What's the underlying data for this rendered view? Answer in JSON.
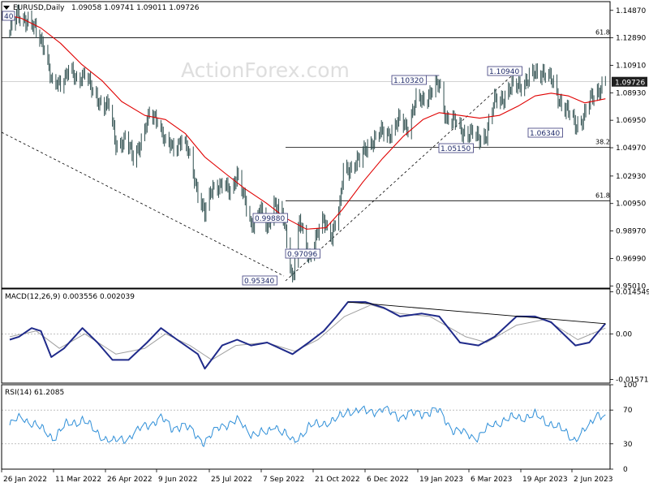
{
  "header": {
    "symbol": "EURUSD,Daily",
    "ohlc": "1.09058 1.09741 1.09011 1.09726"
  },
  "watermark": "ActionForex.com",
  "colors": {
    "candles": "#2f4f4f",
    "ma": "#e00000",
    "macd": "#1f2a8a",
    "signal": "#a0a0a0",
    "rsi": "#2f8fd8",
    "grid": "#9a9a9a",
    "price_label_bg": "#1f1f1f"
  },
  "chart_data": [
    {
      "type": "candlestick",
      "panel": "price",
      "ylim": [
        0.9485,
        1.155
      ],
      "y_ticks": [
        "1.14870",
        "1.12890",
        "1.10910",
        "1.08930",
        "1.06950",
        "1.04970",
        "1.02930",
        "1.00950",
        "0.98970",
        "0.96990",
        "0.95010"
      ],
      "x_labels": [
        "26 Jan 2022",
        "11 Mar 2022",
        "26 Apr 2022",
        "9 Jun 2022",
        "25 Jul 2022",
        "7 Sep 2022",
        "21 Oct 2022",
        "6 Dec 2022",
        "19 Jan 2023",
        "6 Mar 2023",
        "19 Apr 2023",
        "2 Jun 2023"
      ],
      "close_path": [
        [
          "2022-01-26",
          1.133
        ],
        [
          "2022-02-02",
          1.145
        ],
        [
          "2022-02-10",
          1.142
        ],
        [
          "2022-02-18",
          1.133
        ],
        [
          "2022-02-25",
          1.124
        ],
        [
          "2022-03-04",
          1.093
        ],
        [
          "2022-03-11",
          1.098
        ],
        [
          "2022-03-18",
          1.105
        ],
        [
          "2022-03-25",
          1.098
        ],
        [
          "2022-04-01",
          1.105
        ],
        [
          "2022-04-08",
          1.088
        ],
        [
          "2022-04-15",
          1.083
        ],
        [
          "2022-04-22",
          1.079
        ],
        [
          "2022-04-28",
          1.052
        ],
        [
          "2022-05-06",
          1.056
        ],
        [
          "2022-05-13",
          1.042
        ],
        [
          "2022-05-20",
          1.056
        ],
        [
          "2022-05-27",
          1.072
        ],
        [
          "2022-06-03",
          1.072
        ],
        [
          "2022-06-10",
          1.052
        ],
        [
          "2022-06-17",
          1.05
        ],
        [
          "2022-06-24",
          1.056
        ],
        [
          "2022-07-01",
          1.043
        ],
        [
          "2022-07-08",
          1.018
        ],
        [
          "2022-07-14",
          1.001
        ],
        [
          "2022-07-21",
          1.023
        ],
        [
          "2022-07-29",
          1.022
        ],
        [
          "2022-08-05",
          1.018
        ],
        [
          "2022-08-11",
          1.032
        ],
        [
          "2022-08-18",
          1.009
        ],
        [
          "2022-08-23",
          0.994
        ],
        [
          "2022-08-31",
          1.005
        ],
        [
          "2022-09-06",
          0.99
        ],
        [
          "2022-09-12",
          1.012
        ],
        [
          "2022-09-20",
          0.998
        ],
        [
          "2022-09-28",
          0.956
        ],
        [
          "2022-10-04",
          0.996
        ],
        [
          "2022-10-12",
          0.971
        ],
        [
          "2022-10-18",
          0.985
        ],
        [
          "2022-10-25",
          0.996
        ],
        [
          "2022-11-01",
          0.988
        ],
        [
          "2022-11-08",
          1.006
        ],
        [
          "2022-11-11",
          1.034
        ],
        [
          "2022-11-18",
          1.036
        ],
        [
          "2022-11-25",
          1.04
        ],
        [
          "2022-12-02",
          1.053
        ],
        [
          "2022-12-09",
          1.055
        ],
        [
          "2022-12-15",
          1.062
        ],
        [
          "2022-12-23",
          1.06
        ],
        [
          "2022-12-30",
          1.07
        ],
        [
          "2023-01-06",
          1.065
        ],
        [
          "2023-01-13",
          1.083
        ],
        [
          "2023-01-20",
          1.085
        ],
        [
          "2023-01-26",
          1.09
        ],
        [
          "2023-02-02",
          1.095
        ],
        [
          "2023-02-08",
          1.072
        ],
        [
          "2023-02-15",
          1.068
        ],
        [
          "2023-02-22",
          1.062
        ],
        [
          "2023-03-01",
          1.06
        ],
        [
          "2023-03-08",
          1.056
        ],
        [
          "2023-03-15",
          1.06
        ],
        [
          "2023-03-22",
          1.083
        ],
        [
          "2023-03-29",
          1.086
        ],
        [
          "2023-04-05",
          1.092
        ],
        [
          "2023-04-12",
          1.095
        ],
        [
          "2023-04-19",
          1.098
        ],
        [
          "2023-04-26",
          1.103
        ],
        [
          "2023-05-03",
          1.105
        ],
        [
          "2023-05-10",
          1.098
        ],
        [
          "2023-05-17",
          1.085
        ],
        [
          "2023-05-24",
          1.076
        ],
        [
          "2023-05-31",
          1.066
        ],
        [
          "2023-06-07",
          1.072
        ],
        [
          "2023-06-14",
          1.085
        ],
        [
          "2023-06-21",
          1.093
        ],
        [
          "2023-06-26",
          1.0973
        ]
      ],
      "moving_average": [
        [
          "2022-01-26",
          1.145
        ],
        [
          "2022-02-05",
          1.143
        ],
        [
          "2022-02-22",
          1.136
        ],
        [
          "2022-03-11",
          1.125
        ],
        [
          "2022-03-29",
          1.11
        ],
        [
          "2022-04-16",
          1.098
        ],
        [
          "2022-05-03",
          1.083
        ],
        [
          "2022-05-23",
          1.073
        ],
        [
          "2022-06-10",
          1.07
        ],
        [
          "2022-06-27",
          1.06
        ],
        [
          "2022-07-14",
          1.043
        ],
        [
          "2022-08-01",
          1.031
        ],
        [
          "2022-08-18",
          1.02
        ],
        [
          "2022-09-05",
          1.01
        ],
        [
          "2022-09-22",
          0.999
        ],
        [
          "2022-10-10",
          0.991
        ],
        [
          "2022-10-27",
          0.992
        ],
        [
          "2022-11-10",
          1.005
        ],
        [
          "2022-11-28",
          1.025
        ],
        [
          "2022-12-15",
          1.042
        ],
        [
          "2023-01-02",
          1.058
        ],
        [
          "2023-01-19",
          1.07
        ],
        [
          "2023-02-02",
          1.075
        ],
        [
          "2023-02-20",
          1.073
        ],
        [
          "2023-03-09",
          1.071
        ],
        [
          "2023-03-26",
          1.073
        ],
        [
          "2023-04-12",
          1.08
        ],
        [
          "2023-04-26",
          1.087
        ],
        [
          "2023-05-10",
          1.089
        ],
        [
          "2023-05-25",
          1.087
        ],
        [
          "2023-06-08",
          1.082
        ],
        [
          "2023-06-26",
          1.085
        ]
      ],
      "horizontal_levels": [
        {
          "label": "61.8",
          "value": 1.129
        },
        {
          "label": "38.2",
          "value": 1.05
        },
        {
          "label": "61.8",
          "value": 1.0115
        }
      ],
      "current_price": "1.09726",
      "annotations": [
        {
          "text": "1.10320",
          "date": "2023-02-02"
        },
        {
          "text": "1.10940",
          "date": "2023-04-26"
        },
        {
          "text": "1.06340",
          "date": "2023-05-31"
        },
        {
          "text": "1.05150",
          "date": "2023-03-08"
        },
        {
          "text": "0.95340",
          "date": "2022-09-28"
        },
        {
          "text": "0.97096",
          "date": "2022-10-12"
        },
        {
          "text": "0.99880",
          "date": "2022-09-20"
        },
        {
          "text": "40",
          "date": "2022-01-26"
        }
      ]
    },
    {
      "type": "line",
      "panel": "macd",
      "label": "MACD(12,26,9) 0.003556 0.002039",
      "ylim": [
        -0.017,
        0.0155
      ],
      "y_ticks": [
        "0.014549",
        "0.00",
        "-0.015712"
      ],
      "macd": [
        [
          "2022-01-26",
          -0.002
        ],
        [
          "2022-02-03",
          -0.001
        ],
        [
          "2022-02-14",
          0.002
        ],
        [
          "2022-02-22",
          0.001
        ],
        [
          "2022-03-03",
          -0.008
        ],
        [
          "2022-03-14",
          -0.005
        ],
        [
          "2022-03-30",
          0.002
        ],
        [
          "2022-04-12",
          -0.003
        ],
        [
          "2022-04-25",
          -0.009
        ],
        [
          "2022-05-09",
          -0.009
        ],
        [
          "2022-05-25",
          -0.003
        ],
        [
          "2022-06-06",
          0.002
        ],
        [
          "2022-06-20",
          -0.002
        ],
        [
          "2022-07-08",
          -0.007
        ],
        [
          "2022-07-14",
          -0.012
        ],
        [
          "2022-07-29",
          -0.004
        ],
        [
          "2022-08-11",
          -0.002
        ],
        [
          "2022-08-23",
          -0.004
        ],
        [
          "2022-09-06",
          -0.003
        ],
        [
          "2022-09-28",
          -0.007
        ],
        [
          "2022-10-12",
          -0.003
        ],
        [
          "2022-10-25",
          0.001
        ],
        [
          "2022-11-05",
          0.006
        ],
        [
          "2022-11-15",
          0.011
        ],
        [
          "2022-11-30",
          0.011
        ],
        [
          "2022-12-16",
          0.009
        ],
        [
          "2022-12-30",
          0.006
        ],
        [
          "2023-01-18",
          0.007
        ],
        [
          "2023-02-02",
          0.006
        ],
        [
          "2023-02-20",
          -0.003
        ],
        [
          "2023-03-08",
          -0.004
        ],
        [
          "2023-03-22",
          -0.001
        ],
        [
          "2023-04-10",
          0.006
        ],
        [
          "2023-04-26",
          0.006
        ],
        [
          "2023-05-10",
          0.004
        ],
        [
          "2023-05-31",
          -0.004
        ],
        [
          "2023-06-12",
          -0.003
        ],
        [
          "2023-06-26",
          0.0036
        ]
      ],
      "signal": [
        [
          "2022-01-26",
          -0.001
        ],
        [
          "2022-02-18",
          0.001
        ],
        [
          "2022-03-10",
          -0.005
        ],
        [
          "2022-04-01",
          0.0
        ],
        [
          "2022-04-28",
          -0.007
        ],
        [
          "2022-05-23",
          -0.005
        ],
        [
          "2022-06-10",
          0.0
        ],
        [
          "2022-07-01",
          -0.004
        ],
        [
          "2022-07-20",
          -0.009
        ],
        [
          "2022-08-10",
          -0.004
        ],
        [
          "2022-09-05",
          -0.003
        ],
        [
          "2022-09-30",
          -0.006
        ],
        [
          "2022-10-20",
          -0.002
        ],
        [
          "2022-11-12",
          0.006
        ],
        [
          "2022-12-05",
          0.01
        ],
        [
          "2022-12-30",
          0.007
        ],
        [
          "2023-01-25",
          0.006
        ],
        [
          "2023-02-25",
          -0.001
        ],
        [
          "2023-03-15",
          -0.003
        ],
        [
          "2023-04-10",
          0.003
        ],
        [
          "2023-05-05",
          0.005
        ],
        [
          "2023-06-02",
          -0.002
        ],
        [
          "2023-06-26",
          0.002
        ]
      ],
      "trendline": [
        [
          "2022-11-15",
          0.011
        ],
        [
          "2023-06-26",
          0.0035
        ]
      ]
    },
    {
      "type": "line",
      "panel": "rsi",
      "label": "RSI(14) 61.2085",
      "ylim": [
        0,
        100
      ],
      "y_ticks": [
        "100",
        "70",
        "30",
        "0"
      ],
      "levels": [
        70,
        30
      ],
      "rsi": [
        [
          "2022-01-26",
          52
        ],
        [
          "2022-02-05",
          62
        ],
        [
          "2022-02-15",
          55
        ],
        [
          "2022-02-25",
          45
        ],
        [
          "2022-03-05",
          38
        ],
        [
          "2022-03-15",
          52
        ],
        [
          "2022-03-30",
          60
        ],
        [
          "2022-04-10",
          45
        ],
        [
          "2022-04-25",
          32
        ],
        [
          "2022-05-09",
          38
        ],
        [
          "2022-05-25",
          52
        ],
        [
          "2022-06-06",
          60
        ],
        [
          "2022-06-15",
          48
        ],
        [
          "2022-06-25",
          52
        ],
        [
          "2022-07-08",
          38
        ],
        [
          "2022-07-14",
          32
        ],
        [
          "2022-07-29",
          52
        ],
        [
          "2022-08-11",
          57
        ],
        [
          "2022-08-23",
          43
        ],
        [
          "2022-09-06",
          42
        ],
        [
          "2022-09-12",
          54
        ],
        [
          "2022-09-28",
          33
        ],
        [
          "2022-10-12",
          50
        ],
        [
          "2022-10-25",
          56
        ],
        [
          "2022-11-05",
          58
        ],
        [
          "2022-11-15",
          70
        ],
        [
          "2022-11-30",
          68
        ],
        [
          "2022-12-15",
          70
        ],
        [
          "2022-12-30",
          62
        ],
        [
          "2023-01-18",
          66
        ],
        [
          "2023-02-02",
          68
        ],
        [
          "2023-02-15",
          45
        ],
        [
          "2023-03-08",
          38
        ],
        [
          "2023-03-22",
          55
        ],
        [
          "2023-04-10",
          62
        ],
        [
          "2023-04-26",
          64
        ],
        [
          "2023-05-10",
          55
        ],
        [
          "2023-05-31",
          36
        ],
        [
          "2023-06-12",
          50
        ],
        [
          "2023-06-18",
          68
        ],
        [
          "2023-06-26",
          61.2
        ]
      ]
    }
  ]
}
